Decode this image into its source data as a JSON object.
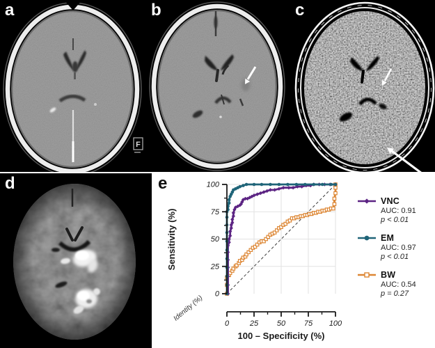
{
  "figure": {
    "panels": [
      {
        "id": "a",
        "label": "a"
      },
      {
        "id": "b",
        "label": "b"
      },
      {
        "id": "c",
        "label": "c"
      },
      {
        "id": "d",
        "label": "d"
      },
      {
        "id": "e",
        "label": "e"
      }
    ],
    "panel_a_orientation_marker": "F"
  },
  "chart_data": {
    "type": "line",
    "subtype": "roc-curves",
    "title": "",
    "xlabel": "100 – Specificity (%)",
    "ylabel": "Sensitivity (%)",
    "xlim": [
      0,
      100
    ],
    "ylim": [
      0,
      100
    ],
    "xticks": [
      0,
      25,
      50,
      75,
      100
    ],
    "yticks": [
      0,
      25,
      50,
      75,
      100
    ],
    "minor_ticks": [
      12.5,
      37.5,
      62.5,
      87.5
    ],
    "grid": true,
    "grid_color": "#e2e2e2",
    "axis_color": "#1a1a1a",
    "identity_label": "Identity (%)",
    "identity_line": {
      "from": [
        0,
        0
      ],
      "to": [
        100,
        100
      ],
      "style": "dashed",
      "color": "#3c3c3c"
    },
    "legend_position": "right",
    "series": [
      {
        "name": "VNC",
        "auc_label": "AUC: 0.91",
        "p_label": "p < 0.01",
        "color": "#5c2483",
        "marker": "diamond",
        "points": [
          [
            1,
            0
          ],
          [
            1,
            8
          ],
          [
            1,
            16
          ],
          [
            1,
            24
          ],
          [
            1,
            31
          ],
          [
            1,
            38
          ],
          [
            1,
            44
          ],
          [
            2,
            47
          ],
          [
            2,
            50
          ],
          [
            3,
            53
          ],
          [
            3,
            57
          ],
          [
            4,
            60
          ],
          [
            4,
            63
          ],
          [
            5,
            65
          ],
          [
            5,
            68
          ],
          [
            6,
            71
          ],
          [
            6,
            74
          ],
          [
            7,
            77
          ],
          [
            8,
            79
          ],
          [
            10,
            80
          ],
          [
            12,
            81
          ],
          [
            13,
            82
          ],
          [
            14,
            84
          ],
          [
            15,
            86
          ],
          [
            17,
            87
          ],
          [
            19,
            87
          ],
          [
            21,
            88
          ],
          [
            23,
            89
          ],
          [
            25,
            90
          ],
          [
            28,
            91
          ],
          [
            31,
            92
          ],
          [
            34,
            93
          ],
          [
            37,
            94
          ],
          [
            40,
            95
          ],
          [
            44,
            95
          ],
          [
            48,
            96
          ],
          [
            52,
            97
          ],
          [
            57,
            97
          ],
          [
            61,
            97
          ],
          [
            65,
            98
          ],
          [
            69,
            98
          ],
          [
            73,
            99
          ],
          [
            77,
            99
          ],
          [
            80,
            100
          ],
          [
            85,
            100
          ],
          [
            90,
            100
          ],
          [
            95,
            100
          ],
          [
            100,
            100
          ]
        ]
      },
      {
        "name": "EM",
        "auc_label": "AUC: 0.97",
        "p_label": "p < 0.01",
        "color": "#1f6478",
        "marker": "circle",
        "points": [
          [
            0,
            0
          ],
          [
            0,
            8
          ],
          [
            0,
            16
          ],
          [
            0,
            24
          ],
          [
            0,
            32
          ],
          [
            0,
            40
          ],
          [
            0,
            48
          ],
          [
            0,
            56
          ],
          [
            0,
            63
          ],
          [
            0,
            70
          ],
          [
            0,
            75
          ],
          [
            1,
            77
          ],
          [
            1,
            80
          ],
          [
            2,
            83
          ],
          [
            2,
            86
          ],
          [
            3,
            89
          ],
          [
            4,
            91
          ],
          [
            5,
            93
          ],
          [
            6,
            95
          ],
          [
            8,
            96
          ],
          [
            10,
            97
          ],
          [
            12,
            98
          ],
          [
            15,
            99
          ],
          [
            18,
            100
          ],
          [
            25,
            100
          ],
          [
            32,
            100
          ],
          [
            40,
            100
          ],
          [
            48,
            100
          ],
          [
            56,
            100
          ],
          [
            64,
            100
          ],
          [
            72,
            100
          ],
          [
            80,
            100
          ],
          [
            88,
            100
          ],
          [
            96,
            100
          ],
          [
            100,
            100
          ]
        ]
      },
      {
        "name": "BW",
        "auc_label": "AUC: 0.54",
        "p_label": "p = 0.27",
        "color": "#dd8633",
        "marker": "square-open",
        "points": [
          [
            0,
            0
          ],
          [
            0,
            8
          ],
          [
            0,
            15
          ],
          [
            2,
            17
          ],
          [
            3,
            19
          ],
          [
            5,
            21
          ],
          [
            6,
            23
          ],
          [
            8,
            25
          ],
          [
            9,
            26
          ],
          [
            11,
            28
          ],
          [
            12,
            30
          ],
          [
            14,
            31
          ],
          [
            15,
            33
          ],
          [
            17,
            34
          ],
          [
            18,
            36
          ],
          [
            20,
            38
          ],
          [
            22,
            40
          ],
          [
            24,
            42
          ],
          [
            26,
            43
          ],
          [
            28,
            45
          ],
          [
            30,
            47
          ],
          [
            32,
            48
          ],
          [
            34,
            48
          ],
          [
            36,
            50
          ],
          [
            38,
            52
          ],
          [
            40,
            54
          ],
          [
            42,
            55
          ],
          [
            44,
            56
          ],
          [
            46,
            58
          ],
          [
            48,
            60
          ],
          [
            50,
            61
          ],
          [
            52,
            63
          ],
          [
            54,
            64
          ],
          [
            56,
            66
          ],
          [
            58,
            67
          ],
          [
            60,
            69
          ],
          [
            62,
            69
          ],
          [
            64,
            70
          ],
          [
            66,
            70
          ],
          [
            68,
            71
          ],
          [
            70,
            71
          ],
          [
            72,
            72
          ],
          [
            74,
            72
          ],
          [
            76,
            73
          ],
          [
            78,
            73
          ],
          [
            80,
            74
          ],
          [
            82,
            74
          ],
          [
            84,
            75
          ],
          [
            86,
            75
          ],
          [
            88,
            76
          ],
          [
            90,
            76
          ],
          [
            92,
            77
          ],
          [
            94,
            77
          ],
          [
            96,
            78
          ],
          [
            98,
            78
          ],
          [
            99,
            82
          ],
          [
            99,
            87
          ],
          [
            100,
            92
          ],
          [
            100,
            97
          ],
          [
            100,
            100
          ]
        ]
      }
    ]
  }
}
